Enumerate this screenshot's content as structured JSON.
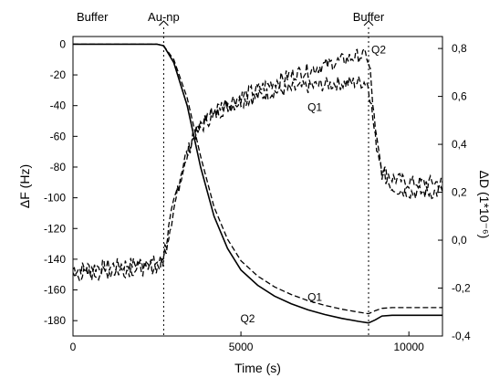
{
  "chart_data": {
    "type": "line",
    "xlabel": "Time (s)",
    "ylabel": "ΔF (Hz)",
    "y2label": "ΔD (1*10⁻⁶)",
    "xlim": [
      0,
      11000
    ],
    "ylim": [
      -190,
      5
    ],
    "y2lim": [
      -0.4,
      0.85
    ],
    "x_ticks": [
      0,
      5000,
      10000
    ],
    "y_ticks": [
      0,
      -20,
      -40,
      -60,
      -80,
      -100,
      -120,
      -140,
      -160,
      -180
    ],
    "y2_ticks": [
      "0,8",
      "0,6",
      "0,4",
      "0,2",
      "0,0",
      "-0,2",
      "-0,4"
    ],
    "y2_tick_values": [
      0.8,
      0.6,
      0.4,
      0.2,
      0.0,
      -0.2,
      -0.4
    ],
    "grid": false,
    "annotations": [
      {
        "text": "Buffer",
        "x": 0
      },
      {
        "text": "Au-np",
        "x": 2700
      },
      {
        "text": "Buffer",
        "x": 8800
      }
    ],
    "event_lines": [
      2700,
      8800
    ],
    "series": [
      {
        "name": "Q2",
        "axis": "left",
        "style": "solid",
        "x": [
          0,
          2500,
          2700,
          3000,
          3400,
          3800,
          4200,
          4600,
          5000,
          5500,
          6000,
          6500,
          7000,
          7500,
          8000,
          8500,
          8800,
          9000,
          9200,
          9500,
          10000,
          11000
        ],
        "y": [
          0,
          0,
          -1,
          -12,
          -40,
          -80,
          -112,
          -133,
          -147,
          -157,
          -164,
          -169,
          -173,
          -176,
          -178.5,
          -180.5,
          -181.5,
          -179.5,
          -177,
          -176.5,
          -176.5,
          -176.5
        ]
      },
      {
        "name": "Q1",
        "axis": "left",
        "style": "dashed",
        "x": [
          0,
          2500,
          2700,
          3000,
          3400,
          3800,
          4200,
          4600,
          5000,
          5500,
          6000,
          6500,
          7000,
          7500,
          8000,
          8500,
          8800,
          9000,
          9200,
          9500,
          10000,
          11000
        ],
        "y": [
          0,
          0,
          -1,
          -10,
          -35,
          -73,
          -106,
          -127,
          -141,
          -151,
          -158,
          -163,
          -167,
          -170,
          -172.5,
          -174.5,
          -175.5,
          -173.5,
          -172,
          -171.5,
          -171.5,
          -171.5
        ]
      },
      {
        "name": "Q1",
        "axis": "right",
        "style": "dashed-noisy",
        "x": [
          0,
          2600,
          2700,
          3000,
          3300,
          3600,
          4000,
          4500,
          5000,
          5500,
          6000,
          6500,
          7000,
          7500,
          8000,
          8500,
          8750,
          8850,
          9000,
          9200,
          9500,
          10000,
          11000
        ],
        "y": [
          -0.12,
          -0.09,
          -0.06,
          0.15,
          0.33,
          0.43,
          0.5,
          0.55,
          0.58,
          0.6,
          0.62,
          0.63,
          0.64,
          0.65,
          0.655,
          0.66,
          0.66,
          0.6,
          0.42,
          0.3,
          0.26,
          0.24,
          0.24
        ]
      },
      {
        "name": "Q2",
        "axis": "right",
        "style": "dashed-noisy",
        "x": [
          0,
          2600,
          2700,
          3000,
          3300,
          3600,
          4000,
          4500,
          5000,
          5500,
          6000,
          6500,
          7000,
          7500,
          8000,
          8500,
          8750,
          8850,
          9000,
          9200,
          9500,
          10000,
          11000
        ],
        "y": [
          -0.15,
          -0.11,
          -0.08,
          0.13,
          0.32,
          0.44,
          0.52,
          0.57,
          0.6,
          0.63,
          0.66,
          0.69,
          0.71,
          0.73,
          0.75,
          0.77,
          0.77,
          0.7,
          0.45,
          0.28,
          0.22,
          0.2,
          0.2
        ]
      }
    ],
    "series_labels": [
      {
        "text": "Q2",
        "x": 9100,
        "y2": 0.78
      },
      {
        "text": "Q1",
        "x": 7200,
        "y2": 0.54
      },
      {
        "text": "Q1",
        "x": 7200,
        "y": -167
      },
      {
        "text": "Q2",
        "x": 5200,
        "y": -181
      }
    ]
  }
}
